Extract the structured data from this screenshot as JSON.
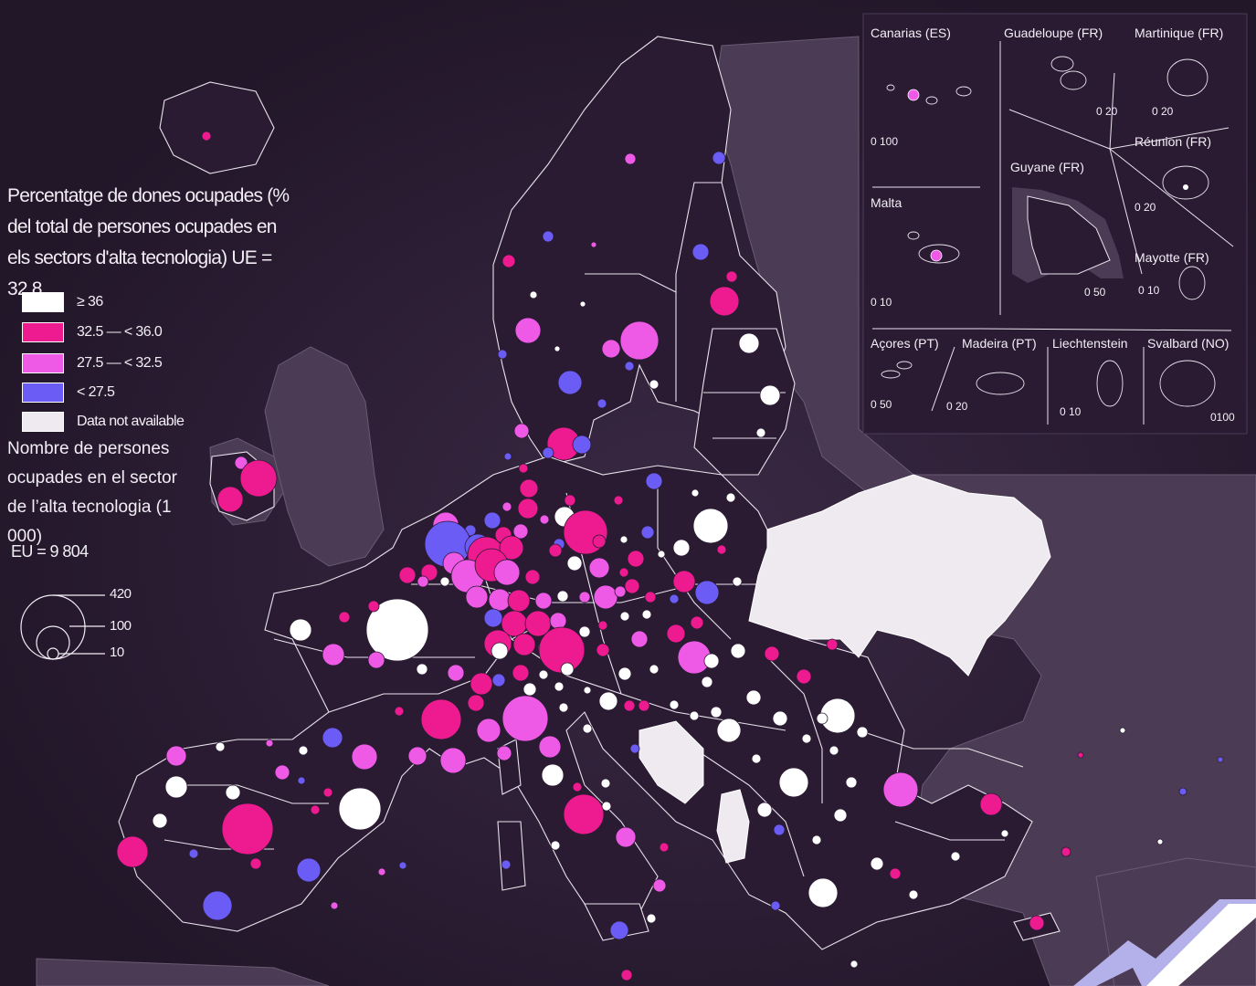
{
  "legend": {
    "title": "Percentatge de dones ocupades (% del total de persones ocupades en els sectors d'alta tecnologia)  UE = 32,8",
    "classes": [
      {
        "label": "≥ 36",
        "color": "#ffffff"
      },
      {
        "label": "32.5 — < 36.0",
        "color": "#ee1a8f"
      },
      {
        "label": "27.5 — < 32.5",
        "color": "#ee5ae6"
      },
      {
        "label": "< 27.5",
        "color": "#6a5cf5"
      },
      {
        "label": "Data not available",
        "color": "#eeeaf0"
      }
    ]
  },
  "size_legend": {
    "title": "Nombre de persones ocupades en el sector de l’alta tecnologia (1 000)",
    "eu_total": "EU = 9 804",
    "values": [
      "420",
      "100",
      "10"
    ]
  },
  "insets": [
    {
      "label": "Canarias (ES)",
      "scale": "0  100"
    },
    {
      "label": "Guadeloupe (FR)",
      "scale": "0  20"
    },
    {
      "label": "Martinique (FR)",
      "scale": "0  20"
    },
    {
      "label": "Réunion (FR)",
      "scale": "0  20"
    },
    {
      "label": "Guyane (FR)",
      "scale": "0 50"
    },
    {
      "label": "Malta",
      "scale": "0  10"
    },
    {
      "label": "Mayotte (FR)",
      "scale": "0  10"
    },
    {
      "label": "Açores (PT)",
      "scale": "0  50"
    },
    {
      "label": "Madeira (PT)",
      "scale": "0  20"
    },
    {
      "label": "Liechtenstein",
      "scale": "0   10"
    },
    {
      "label": "Svalbard (NO)",
      "scale": "0100"
    }
  ],
  "colors": {
    "background": "#2a1b33",
    "land": "#2a1b33",
    "non_eu": "#4b3b54",
    "borders": "#ffffff"
  }
}
